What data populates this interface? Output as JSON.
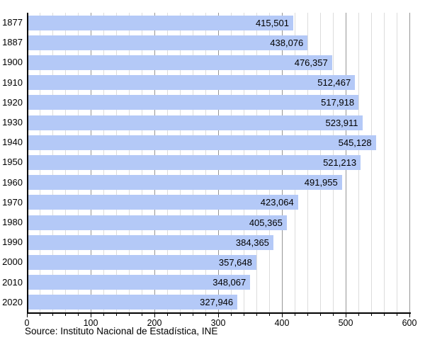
{
  "chart_data": {
    "type": "bar",
    "orientation": "horizontal",
    "title": "",
    "xlabel": "",
    "ylabel": "",
    "categories": [
      "1877",
      "1887",
      "1900",
      "1910",
      "1920",
      "1930",
      "1940",
      "1950",
      "1960",
      "1970",
      "1980",
      "1990",
      "2000",
      "2010",
      "2020"
    ],
    "values": [
      415501,
      438076,
      476357,
      512467,
      517918,
      523911,
      545128,
      521213,
      491955,
      423064,
      405365,
      384365,
      357648,
      348067,
      327946
    ],
    "value_labels": [
      "415,501",
      "438,076",
      "476,357",
      "512,467",
      "517,918",
      "523,911",
      "545,128",
      "521,213",
      "491,955",
      "423,064",
      "405,365",
      "384,365",
      "357,648",
      "348,067",
      "327,946"
    ],
    "x_axis": {
      "min": 0,
      "max": 600,
      "unit_scale": 1000,
      "major_tick_step": 100,
      "minor_tick_step": 20,
      "tick_labels": [
        "0",
        "100",
        "200",
        "300",
        "400",
        "500",
        "600"
      ]
    },
    "grid": true,
    "legend": null,
    "colors": {
      "bar_fill": "#b4c9f7",
      "grid_minor": "#dcdcdc",
      "grid_major": "#969696",
      "axis": "#000000",
      "text": "#000000",
      "background": "#ffffff"
    }
  },
  "footer": {
    "source": "Source: Instituto Nacional de Estadística, INE"
  }
}
